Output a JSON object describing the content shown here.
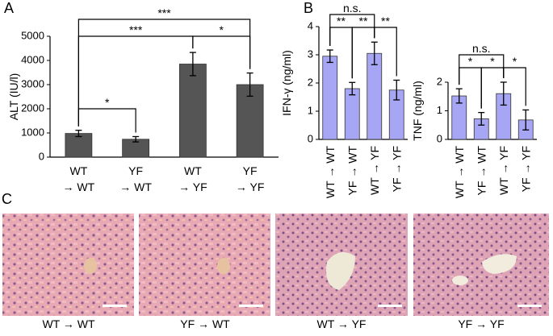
{
  "chart_data": [
    {
      "type": "bar",
      "panel": "A",
      "ylabel": "ALT (IU/l)",
      "categories": [
        [
          "WT",
          "→ WT"
        ],
        [
          "YF",
          "→ WT"
        ],
        [
          "WT",
          "→ YF"
        ],
        [
          "YF",
          "→ YF"
        ]
      ],
      "values": [
        980,
        740,
        3850,
        3000
      ],
      "errors": [
        130,
        110,
        480,
        480
      ],
      "color": "#555555",
      "ylim": [
        0,
        5000
      ],
      "yticks": [
        0,
        1000,
        2000,
        3000,
        4000,
        5000
      ],
      "annotations": [
        {
          "text": "*",
          "from": 0,
          "to": 1
        },
        {
          "text": "***",
          "from": 0,
          "to": 3
        },
        {
          "text": "***",
          "from": 0,
          "to": 2
        },
        {
          "text": "*",
          "from": 2,
          "to": 3
        }
      ]
    },
    {
      "type": "bar",
      "panel": "B",
      "ylabel": "IFN-γ (ng/ml)",
      "categories": [
        "WT → WT",
        "YF → WT",
        "WT → YF",
        "YF → YF"
      ],
      "values": [
        2.95,
        1.8,
        3.05,
        1.75
      ],
      "errors": [
        0.22,
        0.22,
        0.4,
        0.35
      ],
      "color": "#a6a6f4",
      "ylim": [
        0,
        4
      ],
      "yticks": [
        0,
        1,
        2,
        3,
        4
      ],
      "annotations": [
        {
          "text": "n.s.",
          "from": 0,
          "to": 2
        },
        {
          "text": "**",
          "from": 0,
          "to": 1
        },
        {
          "text": "**",
          "from": 1,
          "to": 2
        },
        {
          "text": "**",
          "from": 2,
          "to": 3
        }
      ]
    },
    {
      "type": "bar",
      "ylabel": "TNF (ng/ml)",
      "categories": [
        "WT → WT",
        "YF → WT",
        "WT → YF",
        "YF → YF"
      ],
      "values": [
        1.52,
        0.72,
        1.6,
        0.68
      ],
      "errors": [
        0.25,
        0.22,
        0.4,
        0.35
      ],
      "color": "#a6a6f4",
      "ylim": [
        0,
        2
      ],
      "yticks": [
        0,
        1,
        2
      ],
      "annotations": [
        {
          "text": "n.s.",
          "from": 0,
          "to": 2
        },
        {
          "text": "*",
          "from": 0,
          "to": 1
        },
        {
          "text": "*",
          "from": 1,
          "to": 2
        },
        {
          "text": "*",
          "from": 2,
          "to": 3
        }
      ]
    }
  ],
  "panel_c": {
    "label": "C",
    "captions": [
      "WT → WT",
      "YF → WT",
      "WT → YF",
      "YF → YF"
    ]
  }
}
